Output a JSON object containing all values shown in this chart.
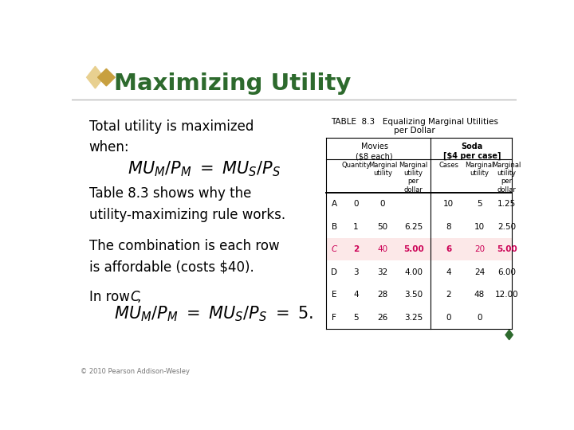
{
  "title": "Maximizing Utility",
  "title_color": "#2d6a2d",
  "background_color": "#ffffff",
  "footer": "© 2010 Pearson Addison-Wesley",
  "diamond_color": "#c8a040",
  "diamond_color2": "#e8d090",
  "highlight_color": "#cc0055",
  "rows": [
    {
      "label": "A",
      "q": "0",
      "mu_m": "0",
      "mupd_m": "",
      "cases": "10",
      "mu_s": "5",
      "mupd_s": "1.25",
      "highlight": false
    },
    {
      "label": "B",
      "q": "1",
      "mu_m": "50",
      "mupd_m": "6.25",
      "cases": "8",
      "mu_s": "10",
      "mupd_s": "2.50",
      "highlight": false
    },
    {
      "label": "C",
      "q": "2",
      "mu_m": "40",
      "mupd_m": "5.00",
      "cases": "6",
      "mu_s": "20",
      "mupd_s": "5.00",
      "highlight": true
    },
    {
      "label": "D",
      "q": "3",
      "mu_m": "32",
      "mupd_m": "4.00",
      "cases": "4",
      "mu_s": "24",
      "mupd_s": "6.00",
      "highlight": false
    },
    {
      "label": "E",
      "q": "4",
      "mu_m": "28",
      "mupd_m": "3.50",
      "cases": "2",
      "mu_s": "48",
      "mupd_s": "12.00",
      "highlight": false
    },
    {
      "label": "F",
      "q": "5",
      "mu_m": "26",
      "mupd_m": "3.25",
      "cases": "0",
      "mu_s": "0",
      "mupd_s": "",
      "highlight": false
    }
  ]
}
